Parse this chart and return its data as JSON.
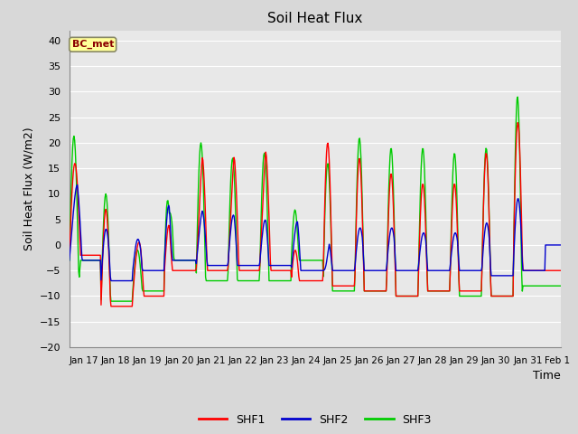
{
  "title": "Soil Heat Flux",
  "xlabel": "Time",
  "ylabel": "Soil Heat Flux (W/m2)",
  "ylim": [
    -20,
    42
  ],
  "yticks": [
    -20,
    -15,
    -10,
    -5,
    0,
    5,
    10,
    15,
    20,
    25,
    30,
    35,
    40
  ],
  "annotation_label": "BC_met",
  "annotation_color": "#8B0000",
  "annotation_bg": "#FFFF99",
  "colors": {
    "SHF1": "#FF0000",
    "SHF2": "#0000CD",
    "SHF3": "#00CC00"
  },
  "fig_bg_color": "#D8D8D8",
  "plot_bg_color": "#E8E8E8",
  "grid_color": "#FFFFFF",
  "x_tick_labels": [
    "Jan 17",
    "Jan 18",
    "Jan 19",
    "Jan 20",
    "Jan 21",
    "Jan 22",
    "Jan 23",
    "Jan 24",
    "Jan 25",
    "Jan 26",
    "Jan 27",
    "Jan 28",
    "Jan 29",
    "Jan 30",
    "Jan 31",
    "Feb 1"
  ]
}
